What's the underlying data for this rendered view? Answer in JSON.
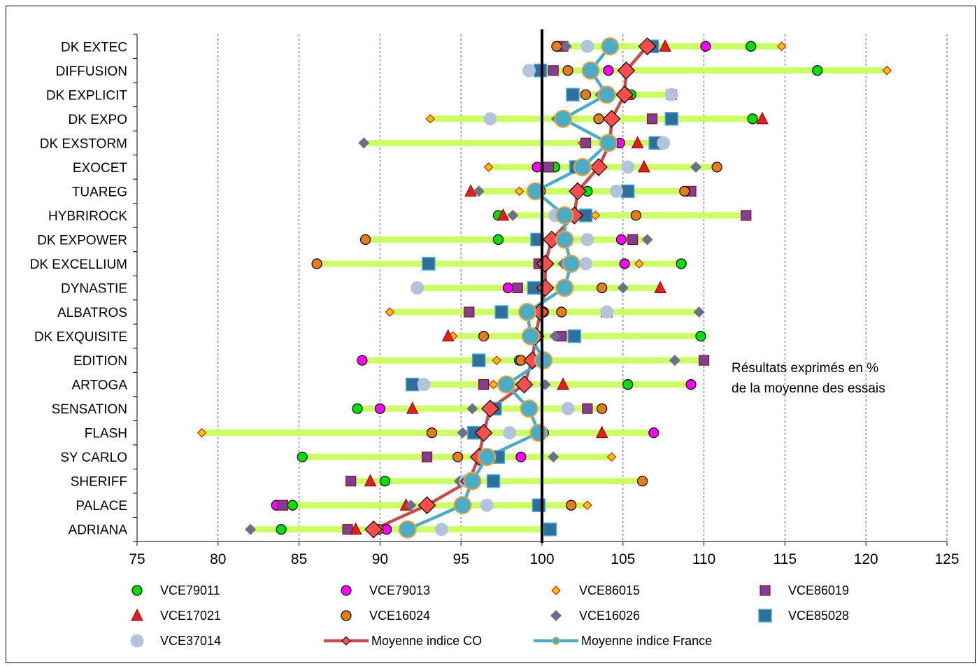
{
  "chart_data": {
    "type": "scatter",
    "title": "",
    "xlabel": "",
    "ylabel": "",
    "xlim": [
      75,
      125
    ],
    "x_ticks": [
      75,
      80,
      85,
      90,
      95,
      100,
      105,
      110,
      115,
      120,
      125
    ],
    "grid": "vertical dashed",
    "reference_line": 100,
    "legend_position": "bottom",
    "annotation": [
      "Résultats exprimés en %",
      "de la moyenne des essais"
    ],
    "categories": [
      "DK EXTEC",
      "DIFFUSION",
      "DK EXPLICIT",
      "DK EXPO",
      "DK EXSTORM",
      "EXOCET",
      "TUAREG",
      "HYBRIROCK",
      "DK EXPOWER",
      "DK EXCELLIUM",
      "DYNASTIE",
      "ALBATROS",
      "DK EXQUISITE",
      "EDITION",
      "ARTOGA",
      "SENSATION",
      "FLASH",
      "SY CARLO",
      "SHERIFF",
      "PALACE",
      "ADRIANA"
    ],
    "series": [
      {
        "name": "VCE79011",
        "marker": "circle",
        "color": "#00e000",
        "values": [
          112.9,
          117.0,
          105.5,
          113.0,
          null,
          100.8,
          102.8,
          97.3,
          97.3,
          108.6,
          null,
          null,
          109.8,
          98.6,
          105.3,
          88.6,
          100.1,
          85.2,
          90.3,
          84.6,
          83.9
        ]
      },
      {
        "name": "VCE79013",
        "marker": "circle",
        "color": "#ff00ff",
        "values": [
          110.1,
          104.1,
          null,
          null,
          104.8,
          99.7,
          99.9,
          null,
          104.9,
          105.1,
          97.9,
          100.1,
          99.6,
          88.9,
          109.2,
          90.0,
          106.9,
          98.7,
          null,
          83.6,
          90.4
        ]
      },
      {
        "name": "VCE86015",
        "marker": "diamond-small",
        "color": "#ffc000",
        "values": [
          114.8,
          121.3,
          null,
          93.1,
          102.5,
          96.7,
          98.6,
          103.3,
          null,
          106.0,
          null,
          90.6,
          94.5,
          97.2,
          97.0,
          99.1,
          79.0,
          104.3,
          null,
          102.8,
          null
        ]
      },
      {
        "name": "VCE86019",
        "marker": "square-small",
        "color": "#7f3f98",
        "values": [
          101.3,
          100.7,
          108.0,
          106.8,
          102.7,
          100.4,
          109.2,
          112.6,
          105.6,
          99.8,
          98.5,
          95.5,
          101.2,
          110.0,
          96.4,
          102.8,
          null,
          92.9,
          88.2,
          84.0,
          88.0
        ]
      },
      {
        "name": "VCE17021",
        "marker": "triangle",
        "color": "#e02020",
        "values": [
          107.6,
          103.1,
          105.3,
          113.6,
          105.9,
          106.3,
          95.6,
          97.6,
          null,
          null,
          107.3,
          104.0,
          94.2,
          null,
          101.3,
          92.0,
          103.7,
          null,
          89.4,
          91.6,
          88.5
        ]
      },
      {
        "name": "VCE16024",
        "marker": "circle",
        "color": "#e97c1a",
        "values": [
          100.9,
          101.6,
          102.7,
          103.5,
          104.4,
          110.8,
          108.8,
          105.8,
          89.1,
          86.1,
          103.7,
          101.2,
          96.4,
          98.7,
          null,
          103.7,
          93.2,
          94.8,
          106.2,
          101.8,
          89.9
        ]
      },
      {
        "name": "VCE16026",
        "marker": "diamond",
        "color": "#6e6e8a",
        "values": [
          101.5,
          null,
          103.6,
          100.9,
          89.0,
          109.5,
          96.1,
          98.2,
          106.5,
          101.3,
          105.0,
          109.7,
          100.8,
          108.2,
          100.2,
          95.7,
          95.1,
          100.7,
          94.9,
          91.9,
          82.0
        ]
      },
      {
        "name": "VCE85028",
        "marker": "square",
        "color": "#2e6fa0",
        "values": [
          106.8,
          99.9,
          101.9,
          108.0,
          107.0,
          102.1,
          105.3,
          102.7,
          99.7,
          93.0,
          99.5,
          97.5,
          102.0,
          96.1,
          92.0,
          97.1,
          95.8,
          97.3,
          97.0,
          99.8,
          100.5
        ]
      },
      {
        "name": "VCE37014",
        "marker": "circle-large",
        "color": "#b4c3dc",
        "values": [
          102.8,
          99.2,
          108.0,
          96.8,
          107.5,
          105.3,
          104.6,
          100.8,
          102.8,
          102.7,
          92.3,
          104.0,
          99.7,
          99.4,
          92.7,
          101.6,
          98.0,
          96.6,
          95.3,
          96.6,
          93.8
        ]
      },
      {
        "name": "Moyenne indice CO",
        "marker": "diamond-line",
        "color": "#c0504d",
        "values": [
          106.5,
          105.2,
          105.1,
          104.3,
          104.2,
          103.5,
          102.2,
          102.0,
          100.6,
          100.2,
          100.2,
          99.9,
          99.6,
          99.4,
          98.9,
          96.8,
          96.4,
          96.1,
          95.5,
          92.9,
          89.6
        ]
      },
      {
        "name": "Moyenne indice France",
        "marker": "circle-line",
        "color": "#4bacc6",
        "values": [
          104.2,
          103.0,
          104.0,
          101.3,
          104.1,
          102.5,
          99.6,
          101.4,
          101.4,
          101.8,
          101.4,
          99.1,
          99.3,
          100.1,
          97.8,
          99.2,
          99.8,
          96.6,
          95.7,
          95.1,
          91.7
        ]
      }
    ]
  }
}
